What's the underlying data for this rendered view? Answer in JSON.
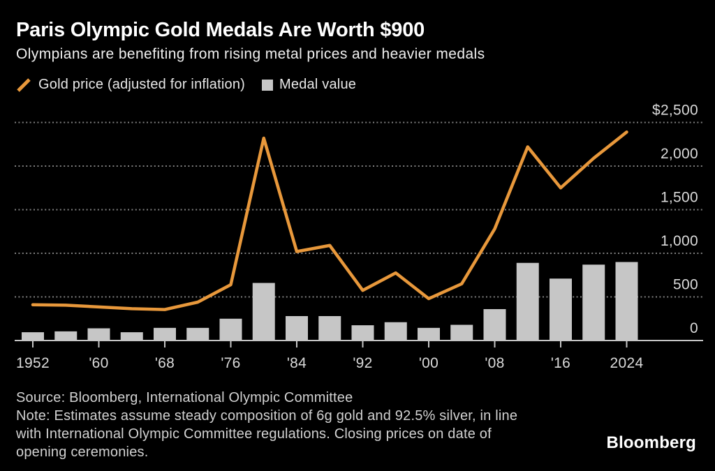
{
  "header": {
    "title": "Paris Olympic Gold Medals Are Worth $900",
    "subtitle": "Olympians are benefiting from rising metal prices and heavier medals"
  },
  "legend": [
    {
      "label": "Gold price (adjusted for inflation)",
      "type": "line",
      "color": "#E8983B"
    },
    {
      "label": "Medal value",
      "type": "bar",
      "color": "#C6C6C6"
    }
  ],
  "chart_data": {
    "type": "combo-line-bar",
    "x": [
      1952,
      1956,
      1960,
      1964,
      1968,
      1972,
      1976,
      1980,
      1984,
      1988,
      1992,
      1996,
      2000,
      2004,
      2008,
      2012,
      2016,
      2020,
      2024
    ],
    "series": [
      {
        "name": "Gold price (adjusted for inflation)",
        "type": "line",
        "color": "#E8983B",
        "values": [
          410,
          405,
          385,
          365,
          355,
          440,
          640,
          2320,
          1020,
          1090,
          575,
          775,
          480,
          650,
          1280,
          2220,
          1750,
          2090,
          2390
        ]
      },
      {
        "name": "Medal value",
        "type": "bar",
        "color": "#C6C6C6",
        "values": [
          95,
          105,
          140,
          95,
          145,
          145,
          250,
          660,
          280,
          280,
          175,
          210,
          145,
          180,
          360,
          890,
          710,
          870,
          900
        ]
      }
    ],
    "ylim": [
      0,
      2500
    ],
    "yticks": [
      2500,
      2000,
      1500,
      1000,
      500,
      0
    ],
    "ytick_labels": [
      "$2,500",
      "2,000",
      "1,500",
      "1,000",
      "500",
      "0"
    ],
    "xtick_positions": [
      1952,
      1960,
      1968,
      1976,
      1984,
      1992,
      2000,
      2008,
      2016,
      2024
    ],
    "xtick_labels": [
      "1952",
      "'60",
      "'68",
      "'76",
      "'84",
      "'92",
      "'00",
      "'08",
      "'16",
      "2024"
    ],
    "grid": "horizontal-dashed",
    "legend_position": "top-left"
  },
  "footer": {
    "source_line": "Source: Bloomberg, International Olympic Committee",
    "note_lines": [
      "Note: Estimates assume steady composition of 6g gold and 92.5% silver, in line",
      "with International Olympic Committee regulations. Closing prices on date of",
      "opening ceremonies."
    ],
    "brand": "Bloomberg"
  }
}
